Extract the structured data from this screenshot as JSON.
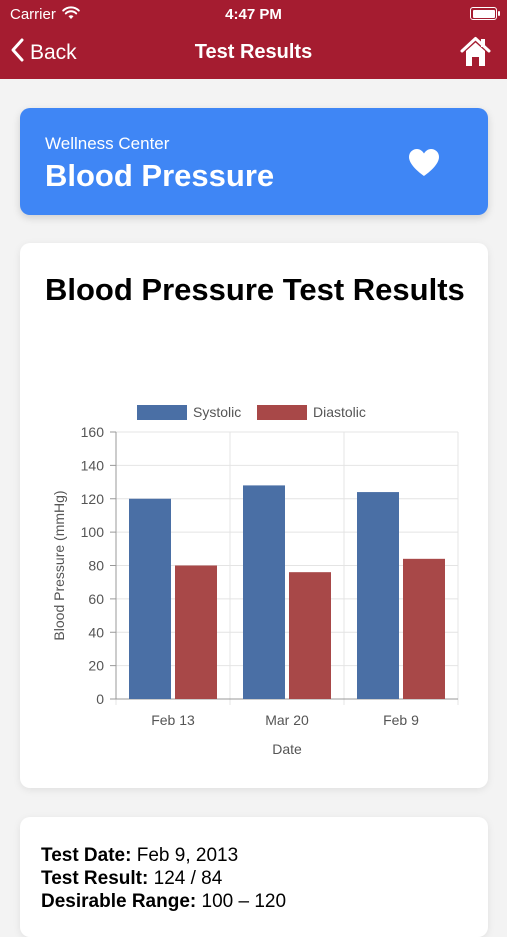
{
  "status_bar": {
    "carrier": "Carrier",
    "time": "4:47 PM"
  },
  "nav": {
    "back_label": "Back",
    "title": "Test Results",
    "home_icon": "home-icon"
  },
  "header_card": {
    "subtitle": "Wellness Center",
    "title": "Blood Pressure",
    "icon": "heart-icon",
    "color": "#3f86f5"
  },
  "results_card": {
    "title": "Blood Pressure Test Results"
  },
  "chart_data": {
    "type": "bar",
    "categories": [
      "Feb 13",
      "Mar 20",
      "Feb 9"
    ],
    "series": [
      {
        "name": "Systolic",
        "values": [
          120,
          128,
          124
        ],
        "color": "#4a6fa5"
      },
      {
        "name": "Diastolic",
        "values": [
          80,
          76,
          84
        ],
        "color": "#a84848"
      }
    ],
    "xlabel": "Date",
    "ylabel": "Blood Pressure (mmHg)",
    "ylim": [
      0,
      160
    ],
    "yticks": [
      "0",
      "20",
      "40",
      "60",
      "80",
      "100",
      "120",
      "140",
      "160"
    ],
    "legend": "top-center",
    "grid": true
  },
  "details": {
    "test_date_label": "Test Date:",
    "test_date_value": "Feb 9, 2013",
    "test_result_label": "Test Result:",
    "test_result_value": "124 / 84",
    "desirable_range_label": "Desirable Range:",
    "desirable_range_value": "100 – 120"
  },
  "colors": {
    "brand": "#a51c30",
    "accent": "#3f86f5"
  }
}
